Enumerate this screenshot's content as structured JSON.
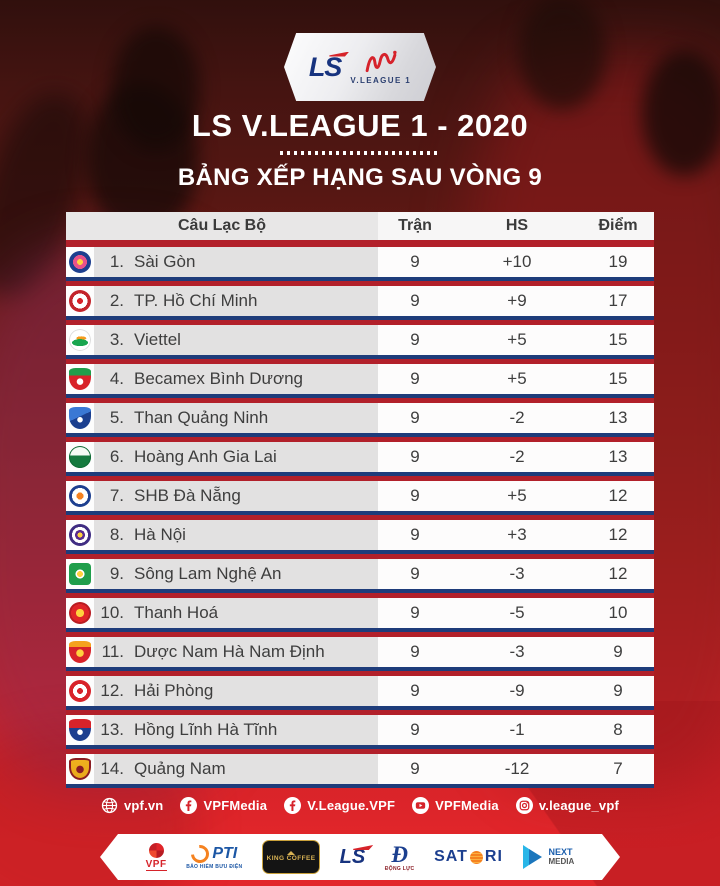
{
  "colors": {
    "bright_red": "#d6232a",
    "navy_border": "#1e3c7a",
    "row_gray": "#e2e1e1",
    "badge_blue": "#17337f"
  },
  "header": {
    "badge_ls": "LS",
    "badge_vleague": "V.LEAGUE 1",
    "title": "LS V.LEAGUE 1 - 2020",
    "subtitle": "BẢNG XẾP HẠNG SAU VÒNG 9"
  },
  "table": {
    "columns": {
      "club": "Câu Lạc Bộ",
      "matches": "Trận",
      "goal_diff": "HS",
      "points": "Điểm"
    },
    "rows": [
      {
        "rank": "1.",
        "club": "Sài Gòn",
        "matches": "9",
        "goal_diff": "+10",
        "points": "19",
        "logo": "sai-gon"
      },
      {
        "rank": "2.",
        "club": "TP. Hồ Chí Minh",
        "matches": "9",
        "goal_diff": "+9",
        "points": "17",
        "logo": "tp-hcm"
      },
      {
        "rank": "3.",
        "club": "Viettel",
        "matches": "9",
        "goal_diff": "+5",
        "points": "15",
        "logo": "viettel"
      },
      {
        "rank": "4.",
        "club": "Becamex Bình Dương",
        "matches": "9",
        "goal_diff": "+5",
        "points": "15",
        "logo": "binh-duong"
      },
      {
        "rank": "5.",
        "club": "Than Quảng Ninh",
        "matches": "9",
        "goal_diff": "-2",
        "points": "13",
        "logo": "quang-ninh"
      },
      {
        "rank": "6.",
        "club": "Hoàng Anh Gia Lai",
        "matches": "9",
        "goal_diff": "-2",
        "points": "13",
        "logo": "hagl"
      },
      {
        "rank": "7.",
        "club": "SHB Đà Nẵng",
        "matches": "9",
        "goal_diff": "+5",
        "points": "12",
        "logo": "da-nang"
      },
      {
        "rank": "8.",
        "club": "Hà Nội",
        "matches": "9",
        "goal_diff": "+3",
        "points": "12",
        "logo": "ha-noi"
      },
      {
        "rank": "9.",
        "club": "Sông Lam Nghệ An",
        "matches": "9",
        "goal_diff": "-3",
        "points": "12",
        "logo": "slna"
      },
      {
        "rank": "10.",
        "club": "Thanh Hoá",
        "matches": "9",
        "goal_diff": "-5",
        "points": "10",
        "logo": "thanh-hoa"
      },
      {
        "rank": "11.",
        "club": "Dược Nam Hà Nam Định",
        "matches": "9",
        "goal_diff": "-3",
        "points": "9",
        "logo": "nam-dinh"
      },
      {
        "rank": "12.",
        "club": "Hải Phòng",
        "matches": "9",
        "goal_diff": "-9",
        "points": "9",
        "logo": "hai-phong"
      },
      {
        "rank": "13.",
        "club": "Hồng Lĩnh Hà Tĩnh",
        "matches": "9",
        "goal_diff": "-1",
        "points": "8",
        "logo": "ha-tinh"
      },
      {
        "rank": "14.",
        "club": "Quảng Nam",
        "matches": "9",
        "goal_diff": "-12",
        "points": "7",
        "logo": "quang-nam"
      }
    ]
  },
  "social": {
    "items": [
      {
        "icon": "globe-icon",
        "label": "vpf.vn"
      },
      {
        "icon": "facebook-icon",
        "label": "VPFMedia"
      },
      {
        "icon": "facebook-icon",
        "label": "V.League.VPF"
      },
      {
        "icon": "youtube-icon",
        "label": "VPFMedia"
      },
      {
        "icon": "instagram-icon",
        "label": "v.league_vpf"
      }
    ]
  },
  "sponsors": {
    "vpf": "VPF",
    "pti": "PTI",
    "pti_sub": "BẢO HIỂM BƯU ĐIỆN",
    "king_coffee": "KING COFFEE",
    "ls": "LS",
    "dong_luc": "ĐỘNG LỰC",
    "satori_left": "SAT",
    "satori_right": "RI",
    "next": "NEXT",
    "media": "MEDIA"
  },
  "chart_data": {
    "type": "table",
    "title": "LS V.LEAGUE 1 - 2020",
    "subtitle": "BẢNG XẾP HẠNG SAU VÒNG 9",
    "columns": [
      "Câu Lạc Bộ",
      "Trận",
      "HS",
      "Điểm"
    ],
    "rows": [
      [
        "Sài Gòn",
        9,
        "+10",
        19
      ],
      [
        "TP. Hồ Chí Minh",
        9,
        "+9",
        17
      ],
      [
        "Viettel",
        9,
        "+5",
        15
      ],
      [
        "Becamex Bình Dương",
        9,
        "+5",
        15
      ],
      [
        "Than Quảng Ninh",
        9,
        "-2",
        13
      ],
      [
        "Hoàng Anh Gia Lai",
        9,
        "-2",
        13
      ],
      [
        "SHB Đà Nẵng",
        9,
        "+5",
        12
      ],
      [
        "Hà Nội",
        9,
        "+3",
        12
      ],
      [
        "Sông Lam Nghệ An",
        9,
        "-3",
        12
      ],
      [
        "Thanh Hoá",
        9,
        "-5",
        10
      ],
      [
        "Dược Nam Hà Nam Định",
        9,
        "-3",
        9
      ],
      [
        "Hải Phòng",
        9,
        "-9",
        9
      ],
      [
        "Hồng Lĩnh Hà Tĩnh",
        9,
        "-1",
        8
      ],
      [
        "Quảng Nam",
        9,
        "-12",
        7
      ]
    ]
  }
}
